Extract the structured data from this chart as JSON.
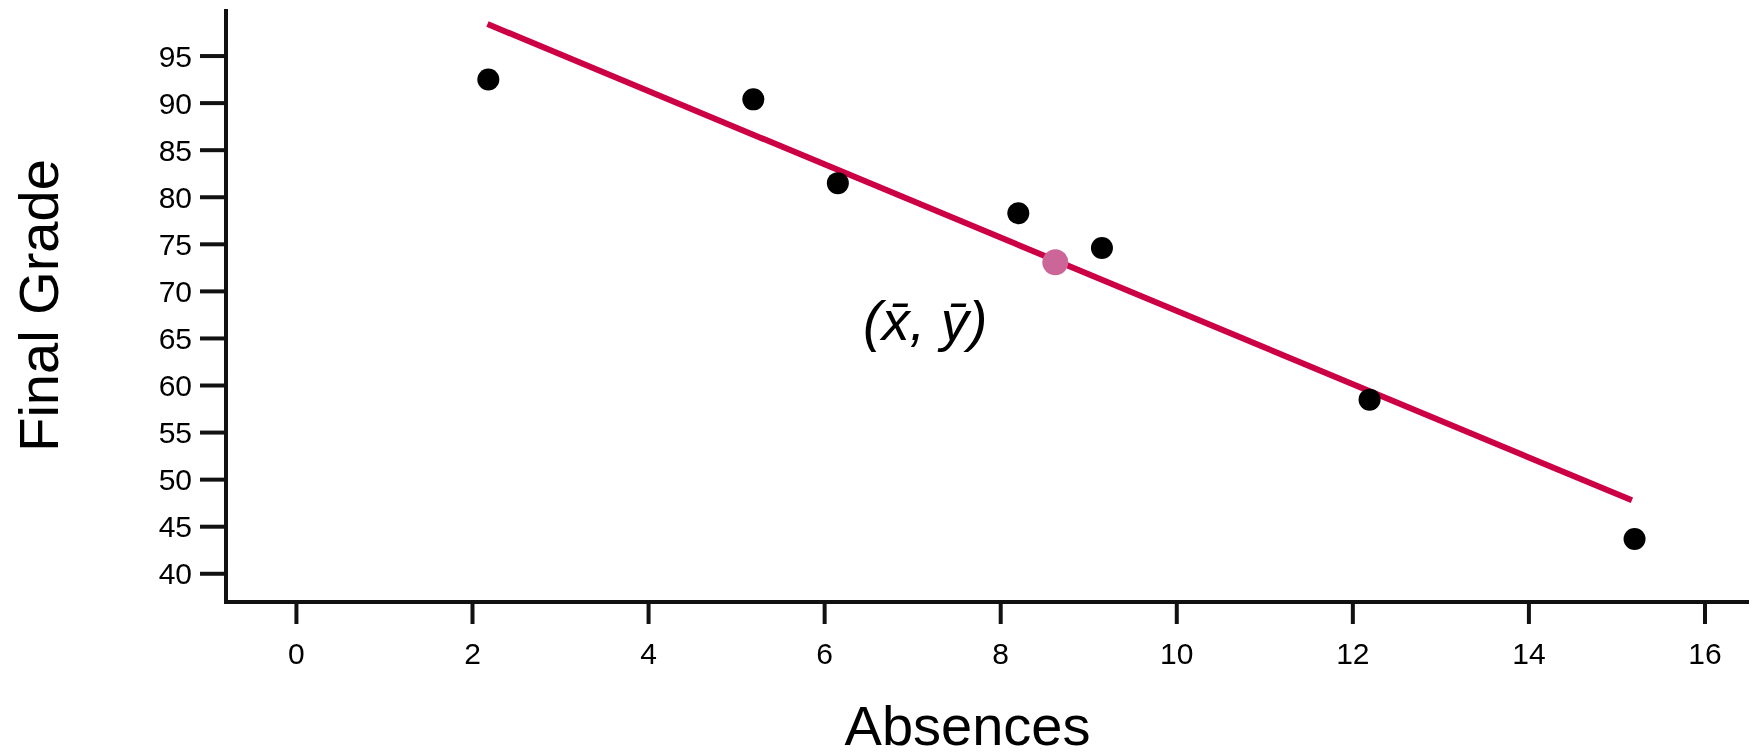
{
  "chart_data": {
    "type": "scatter",
    "xlabel": "Absences",
    "ylabel": "Final Grade",
    "xlim": [
      -0.8,
      16.5
    ],
    "ylim": [
      37,
      100
    ],
    "xticks": [
      0,
      2,
      4,
      6,
      8,
      10,
      12,
      14,
      16
    ],
    "yticks": [
      40,
      45,
      50,
      55,
      60,
      65,
      70,
      75,
      80,
      85,
      90,
      95
    ],
    "grid": false,
    "marker": "circle",
    "series": [
      {
        "type": "line",
        "color": "#cc0044",
        "x": [
          2.17,
          15.17
        ],
        "values": [
          98.4,
          47.8
        ],
        "marker": "none",
        "line_style": "solid"
      },
      {
        "color": "#000000",
        "x": [
          2.18,
          5.19,
          6.15,
          8.2,
          9.15,
          12.19,
          15.2
        ],
        "values": [
          92.5,
          90.4,
          81.5,
          78.3,
          74.6,
          58.5,
          43.7
        ]
      },
      {
        "color": "#cc6699",
        "x": [
          8.62
        ],
        "values": [
          73.1
        ]
      }
    ],
    "annotations": [
      {
        "text": "(x̄, ȳ)",
        "x": 8.62,
        "y": 73.1
      }
    ]
  }
}
